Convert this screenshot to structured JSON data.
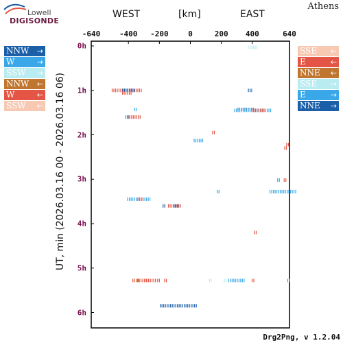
{
  "header": {
    "logo_top": "Lowell",
    "logo_main": "DIGISONDE",
    "station": "Athens",
    "west": "WEST",
    "unit": "[km]",
    "east": "EAST"
  },
  "footer": {
    "version": "Drg2Png, v 1.2.04"
  },
  "colors": {
    "dark_blue": "#1a5fa8",
    "sky_blue": "#3aa8e8",
    "pale_cyan": "#b9ecf1",
    "brown": "#c0762e",
    "red": "#e45545",
    "peach": "#f7c9b3"
  },
  "legend_left": [
    {
      "label": "NNW",
      "arrow": "→",
      "color": "dark_blue"
    },
    {
      "label": "W",
      "arrow": "→",
      "color": "sky_blue"
    },
    {
      "label": "SSW",
      "arrow": "→",
      "color": "pale_cyan"
    },
    {
      "label": "NNW",
      "arrow": "←",
      "color": "brown"
    },
    {
      "label": "W",
      "arrow": "←",
      "color": "red"
    },
    {
      "label": "SSW",
      "arrow": "←",
      "color": "peach"
    }
  ],
  "legend_right": [
    {
      "label": "SSE",
      "arrow": "←",
      "color": "peach"
    },
    {
      "label": "E",
      "arrow": "←",
      "color": "red"
    },
    {
      "label": "NNE",
      "arrow": "←",
      "color": "brown"
    },
    {
      "label": "SSE",
      "arrow": "→",
      "color": "pale_cyan"
    },
    {
      "label": "E",
      "arrow": "→",
      "color": "sky_blue"
    },
    {
      "label": "NNE",
      "arrow": "→",
      "color": "dark_blue"
    }
  ],
  "chart_data": {
    "type": "scatter",
    "ylabel": "UT, min (2026.03.16 00 - 2026.03.16 06)",
    "xlabel": "[km]",
    "xlim": [
      -640,
      640
    ],
    "ylim": [
      0,
      6.2
    ],
    "xticks": [
      -640,
      -400,
      -200,
      0,
      200,
      400,
      640
    ],
    "yticks": [
      {
        "value": 0,
        "label": "0h"
      },
      {
        "value": 1,
        "label": "1h"
      },
      {
        "value": 2,
        "label": "2h"
      },
      {
        "value": 3,
        "label": "3h"
      },
      {
        "value": 4,
        "label": "4h"
      },
      {
        "value": 5,
        "label": "5h"
      },
      {
        "value": 6,
        "label": "6h"
      }
    ],
    "points": [
      {
        "x": 405,
        "y": 0.03,
        "w": 15,
        "color": "pale_cyan"
      },
      {
        "x": -408,
        "y": 1.0,
        "w": 45,
        "color": "red"
      },
      {
        "x": -395,
        "y": 1.0,
        "w": 20,
        "color": "dark_blue"
      },
      {
        "x": -410,
        "y": 1.06,
        "w": 14,
        "color": "red"
      },
      {
        "x": 385,
        "y": 1.0,
        "w": 6,
        "color": "dark_blue"
      },
      {
        "x": 360,
        "y": 1.43,
        "w": 25,
        "color": "dark_blue"
      },
      {
        "x": 405,
        "y": 1.45,
        "w": 55,
        "color": "sky_blue"
      },
      {
        "x": 440,
        "y": 1.45,
        "w": 20,
        "color": "red"
      },
      {
        "x": -355,
        "y": 1.43,
        "w": 4,
        "color": "sky_blue"
      },
      {
        "x": -408,
        "y": 1.6,
        "w": 6,
        "color": "sky_blue"
      },
      {
        "x": -360,
        "y": 1.6,
        "w": 20,
        "color": "red"
      },
      {
        "x": 150,
        "y": 1.95,
        "w": 4,
        "color": "red"
      },
      {
        "x": 55,
        "y": 2.13,
        "w": 15,
        "color": "sky_blue"
      },
      {
        "x": 628,
        "y": 2.22,
        "w": 4,
        "color": "red"
      },
      {
        "x": 615,
        "y": 2.3,
        "w": 4,
        "color": "red"
      },
      {
        "x": 570,
        "y": 3.02,
        "w": 4,
        "color": "sky_blue"
      },
      {
        "x": 612,
        "y": 3.02,
        "w": 4,
        "color": "red"
      },
      {
        "x": 600,
        "y": 3.28,
        "w": 40,
        "color": "sky_blue"
      },
      {
        "x": 180,
        "y": 3.28,
        "w": 4,
        "color": "sky_blue"
      },
      {
        "x": -330,
        "y": 3.45,
        "w": 35,
        "color": "sky_blue"
      },
      {
        "x": -320,
        "y": 3.45,
        "w": 10,
        "color": "red"
      },
      {
        "x": -170,
        "y": 3.6,
        "w": 4,
        "color": "dark_blue"
      },
      {
        "x": -100,
        "y": 3.6,
        "w": 20,
        "color": "red"
      },
      {
        "x": -90,
        "y": 3.6,
        "w": 8,
        "color": "dark_blue"
      },
      {
        "x": 420,
        "y": 4.2,
        "w": 4,
        "color": "red"
      },
      {
        "x": -365,
        "y": 5.28,
        "w": 4,
        "color": "red"
      },
      {
        "x": -340,
        "y": 5.28,
        "w": 4,
        "color": "brown"
      },
      {
        "x": -310,
        "y": 5.28,
        "w": 15,
        "color": "red"
      },
      {
        "x": -250,
        "y": 5.28,
        "w": 15,
        "color": "red"
      },
      {
        "x": -205,
        "y": 5.28,
        "w": 4,
        "color": "red"
      },
      {
        "x": -160,
        "y": 5.28,
        "w": 4,
        "color": "red"
      },
      {
        "x": 130,
        "y": 5.28,
        "w": 4,
        "color": "pale_cyan"
      },
      {
        "x": 225,
        "y": 5.28,
        "w": 4,
        "color": "pale_cyan"
      },
      {
        "x": 300,
        "y": 5.28,
        "w": 25,
        "color": "sky_blue"
      },
      {
        "x": 405,
        "y": 5.28,
        "w": 4,
        "color": "red"
      },
      {
        "x": 635,
        "y": 5.28,
        "w": 4,
        "color": "sky_blue"
      },
      {
        "x": -75,
        "y": 5.85,
        "w": 55,
        "color": "dark_blue"
      }
    ]
  }
}
